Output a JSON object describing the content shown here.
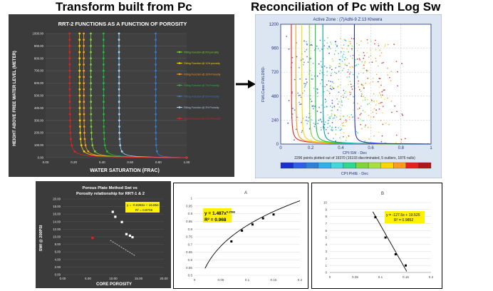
{
  "headings": {
    "left": "Transform built from Pc",
    "right": "Reconciliation of Pc with Log Sw"
  },
  "colors": {
    "dark_bg": "#3b3b3b",
    "dark_plot": "#404040",
    "grid_dark": "#5a5a5a",
    "light_panel_bg": "#dce6f2",
    "arrow": "#000000"
  },
  "chart_data": [
    {
      "id": "rrt2-functions",
      "type": "line",
      "title": "RRT-2 FUNCTIONS AS A FUNCTION OF POROSITY",
      "xlabel": "WATER SATURATION (FRAC)",
      "ylabel": "HEIGHT ABOVE FREE WATER LEVEL (METER)",
      "xlim": [
        0,
        1.0
      ],
      "ylim": [
        0,
        1000
      ],
      "xticks": [
        "0.00",
        "0.20",
        "0.40",
        "0.60",
        "0.80",
        "1.00"
      ],
      "yticks": [
        "0.00",
        "100.00",
        "200.00",
        "300.00",
        "400.00",
        "500.00",
        "600.00",
        "700.00",
        "800.00",
        "900.00",
        "1000.00"
      ],
      "series": [
        {
          "name": "Fitting Function @ 9% porosity",
          "color": "#7fd63a",
          "swi": 0.32
        },
        {
          "name": "Fitting Function @ 11% porosity",
          "color": "#ffd700",
          "swi": 0.24
        },
        {
          "name": "Fitting Function @ 10% Porosity",
          "color": "#ff9a1f",
          "swi": 0.27
        },
        {
          "name": "Fitting Function @ 7% Porosity",
          "color": "#1fbf3a",
          "swi": 0.41
        },
        {
          "name": "Fitting Function @ 5% Porosity",
          "color": "#2f7fd8",
          "swi": 0.78
        },
        {
          "name": "Fitting Function @ 3% Porosity",
          "color": "#a8d8ff",
          "swi": 0.52
        },
        {
          "name": "Fitting Function @ 13% Porosity",
          "color": "#e8201e",
          "swi": 0.17
        }
      ]
    },
    {
      "id": "pc-vs-log-sw",
      "type": "scatter",
      "title": "Active Zone : (7)Adhi-9  Z:13  Khewra",
      "xlabel": "CPI:SW - Dec",
      "ylabel": "FWLCase:FWLD9D-",
      "footer": "2296 points plotted out of 19370 (15193 discriminated, 5 outliers, 1876 nulls)",
      "colorbar_label": "CPI:PHIE - Dec",
      "xlim": [
        0,
        1
      ],
      "ylim": [
        0,
        1200
      ],
      "xticks": [
        "0",
        "0.2",
        "0.4",
        "0.6",
        "0.8",
        "1"
      ],
      "yticks": [
        "0",
        "240",
        "480",
        "720",
        "960",
        "1200"
      ],
      "curves": [
        {
          "color": "#e8201e",
          "swi": 0.07
        },
        {
          "color": "#ff9a1f",
          "swi": 0.1
        },
        {
          "color": "#ffd700",
          "swi": 0.14
        },
        {
          "color": "#7fd63a",
          "swi": 0.19
        },
        {
          "color": "#1fbf3a",
          "swi": 0.23
        },
        {
          "color": "#00a0a0",
          "swi": 0.28
        },
        {
          "color": "#1a2fd0",
          "swi": 0.49
        }
      ],
      "colorbar": [
        "#1a2fd0",
        "#2f5fe8",
        "#2f7fd8",
        "#2fb0e8",
        "#40d8d8",
        "#2fd890",
        "#7fd63a",
        "#a8e040",
        "#ffd700",
        "#ff9a1f",
        "#e8201e",
        "#b01818"
      ]
    },
    {
      "id": "porous-plate",
      "type": "scatter",
      "title": "Porous Plate Method Swi vs Porosity relationship for RRT-1 & 2",
      "xlabel": "CORE POROSITY",
      "ylabel": "SWI @ 200PSI",
      "equation": "y = -0.8282x + 16.854",
      "r2": "R² = 0.9706",
      "xlim": [
        0,
        20
      ],
      "ylim": [
        0,
        20
      ],
      "xticks": [
        "0.00",
        "5.00",
        "10.00",
        "15.00",
        "20.00"
      ],
      "yticks": [
        "0.00",
        "2.00",
        "4.00",
        "6.00",
        "8.00",
        "10.00",
        "12.00",
        "14.00",
        "16.00",
        "18.00",
        "20.00"
      ],
      "points": [
        {
          "x": 9.9,
          "y": 16.6,
          "color": "#ffffff"
        },
        {
          "x": 10.4,
          "y": 15.3,
          "color": "#ffffff"
        },
        {
          "x": 11.7,
          "y": 13.9,
          "color": "#ffffff"
        },
        {
          "x": 12.6,
          "y": 10.7,
          "color": "#ffffff"
        },
        {
          "x": 13.3,
          "y": 10.3,
          "color": "#ffffff"
        },
        {
          "x": 13.8,
          "y": 9.9,
          "color": "#ffffff"
        },
        {
          "x": 5.9,
          "y": 9.7,
          "color": "#e8201e"
        }
      ],
      "fit": {
        "slope": -0.8282,
        "intercept": 16.854,
        "x_range": [
          9.4,
          14.4
        ]
      }
    },
    {
      "id": "chart-A",
      "type": "scatter",
      "title": "A",
      "equation": "y = 1.487x^0.2566",
      "eq_base": "y = 1.487x",
      "eq_exp": "0.2566",
      "r2": "R² = 0.968",
      "xlim": [
        0,
        0.2
      ],
      "ylim": [
        0.5,
        1.0
      ],
      "xticks": [
        "0",
        "0.05",
        "0.1",
        "0.15",
        "0.2"
      ],
      "yticks": [
        "0.5",
        "0.55",
        "0.6",
        "0.65",
        "0.7",
        "0.75",
        "0.8",
        "0.85",
        "0.9",
        "0.95",
        "1"
      ],
      "points": [
        {
          "x": 0.07,
          "y": 0.72
        },
        {
          "x": 0.09,
          "y": 0.79
        },
        {
          "x": 0.11,
          "y": 0.83
        },
        {
          "x": 0.13,
          "y": 0.87
        },
        {
          "x": 0.15,
          "y": 0.895
        }
      ],
      "fit": {
        "a": 1.487,
        "b": 0.2566,
        "x_range": [
          0.02,
          0.2
        ]
      }
    },
    {
      "id": "chart-B",
      "type": "scatter",
      "title": "B",
      "equation": "y = -127.5x + 19.525",
      "r2": "R² = 0.9852",
      "xlim": [
        0,
        0.2
      ],
      "ylim": [
        0,
        10
      ],
      "xticks": [
        "0",
        "0.05",
        "0.1",
        "0.15",
        "0.2"
      ],
      "yticks": [
        "0",
        "1",
        "2",
        "3",
        "4",
        "5",
        "6",
        "7",
        "8",
        "9",
        "10"
      ],
      "points": [
        {
          "x": 0.09,
          "y": 7.9
        },
        {
          "x": 0.11,
          "y": 5.0
        },
        {
          "x": 0.13,
          "y": 2.6
        },
        {
          "x": 0.15,
          "y": 1.0
        }
      ],
      "fit": {
        "slope": -127.5,
        "intercept": 19.525,
        "x_range": [
          0.085,
          0.152
        ]
      }
    }
  ]
}
